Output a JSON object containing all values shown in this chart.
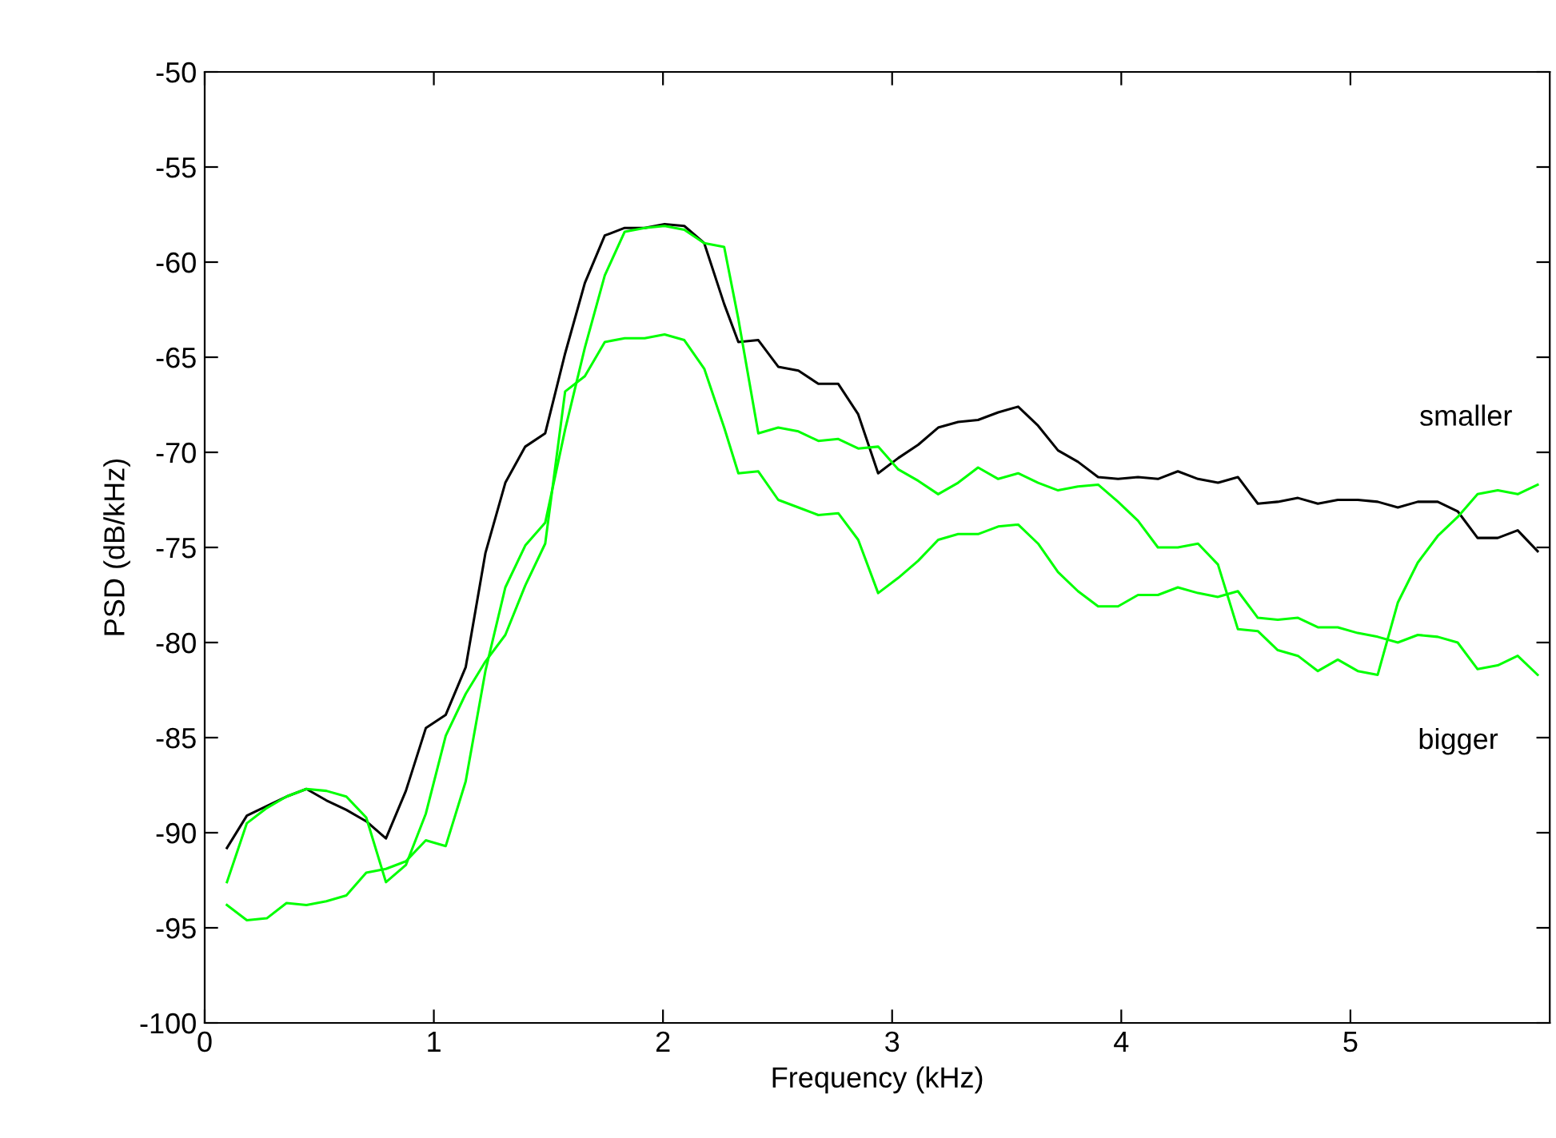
{
  "chart_data": {
    "type": "line",
    "xlabel": "Frequency (kHz)",
    "ylabel": "PSD (dB/kHz)",
    "xlim": [
      0,
      5.87
    ],
    "xticks": [
      0,
      1,
      2,
      3,
      4,
      5
    ],
    "ylim": [
      -100,
      -50
    ],
    "yticks": [
      -100,
      -95,
      -90,
      -85,
      -80,
      -75,
      -70,
      -65,
      -60,
      -55,
      -50
    ],
    "x": [
      0.097,
      0.184,
      0.271,
      0.357,
      0.444,
      0.531,
      0.618,
      0.705,
      0.791,
      0.878,
      0.965,
      1.052,
      1.139,
      1.225,
      1.312,
      1.399,
      1.486,
      1.573,
      1.659,
      1.746,
      1.833,
      1.92,
      2.007,
      2.093,
      2.18,
      2.267,
      2.329,
      2.416,
      2.503,
      2.591,
      2.678,
      2.765,
      2.852,
      2.939,
      3.027,
      3.114,
      3.201,
      3.288,
      3.375,
      3.463,
      3.55,
      3.637,
      3.724,
      3.811,
      3.899,
      3.986,
      4.073,
      4.16,
      4.247,
      4.335,
      4.422,
      4.509,
      4.596,
      4.683,
      4.771,
      4.858,
      4.945,
      5.032,
      5.119,
      5.207,
      5.294,
      5.381,
      5.468,
      5.555,
      5.643,
      5.73,
      5.817
    ],
    "series": [
      {
        "color": "#000000",
        "values": [
          -90.8,
          -89.1,
          -88.6,
          -88.1,
          -87.7,
          -88.3,
          -88.8,
          -89.4,
          -90.3,
          -87.8,
          -84.5,
          -83.8,
          -81.3,
          -75.3,
          -71.6,
          -69.7,
          -69.0,
          -64.8,
          -61.1,
          -58.6,
          -58.2,
          -58.2,
          -58.0,
          -58.1,
          -59.0,
          -62.2,
          -64.2,
          -64.1,
          -65.5,
          -65.7,
          -66.4,
          -66.4,
          -68.0,
          -71.1,
          -70.3,
          -69.6,
          -68.7,
          -68.4,
          -68.3,
          -67.9,
          -67.6,
          -68.6,
          -69.9,
          -70.5,
          -71.3,
          -71.4,
          -71.3,
          -71.4,
          -71.0,
          -71.4,
          -71.6,
          -71.3,
          -72.7,
          -72.6,
          -72.4,
          -72.7,
          -72.5,
          -72.5,
          -72.6,
          -72.9,
          -72.6,
          -72.6,
          -73.1,
          -74.5,
          -74.5,
          -74.1,
          -75.2
        ]
      },
      {
        "color": "#00ff00",
        "values": [
          -93.8,
          -94.6,
          -94.5,
          -93.7,
          -93.8,
          -93.6,
          -93.3,
          -92.1,
          -91.9,
          -91.5,
          -90.4,
          -90.7,
          -87.3,
          -81.5,
          -77.1,
          -74.9,
          -73.7,
          -68.8,
          -64.5,
          -60.7,
          -58.4,
          -58.2,
          -58.1,
          -58.3,
          -59.0,
          -59.2,
          -63.0,
          -69.0,
          -68.7,
          -68.9,
          -69.4,
          -69.3,
          -69.8,
          -69.7,
          -70.9,
          -71.5,
          -72.2,
          -71.6,
          -70.8,
          -71.4,
          -71.1,
          -71.6,
          -72.0,
          -71.8,
          -71.7,
          -72.6,
          -73.6,
          -75.0,
          -75.0,
          -74.8,
          -75.9,
          -79.3,
          -79.4,
          -80.4,
          -80.7,
          -81.5,
          -80.9,
          -81.5,
          -81.7,
          -77.9,
          -75.8,
          -74.4,
          -73.4,
          -72.2,
          -72.0,
          -72.2,
          -71.7
        ]
      },
      {
        "color": "#00ff00",
        "values": [
          -92.6,
          -89.5,
          -88.7,
          -88.1,
          -87.7,
          -87.8,
          -88.1,
          -89.2,
          -92.6,
          -91.7,
          -89.0,
          -84.9,
          -82.7,
          -81.0,
          -79.6,
          -77.0,
          -74.8,
          -66.8,
          -66.0,
          -64.2,
          -64.0,
          -64.0,
          -63.8,
          -64.1,
          -65.6,
          -68.7,
          -71.1,
          -71.0,
          -72.5,
          -72.9,
          -73.3,
          -73.2,
          -74.6,
          -77.4,
          -76.6,
          -75.7,
          -74.6,
          -74.3,
          -74.3,
          -73.9,
          -73.8,
          -74.8,
          -76.3,
          -77.3,
          -78.1,
          -78.1,
          -77.5,
          -77.5,
          -77.1,
          -77.4,
          -77.6,
          -77.3,
          -78.7,
          -78.8,
          -78.7,
          -79.2,
          -79.2,
          -79.5,
          -79.7,
          -80.0,
          -79.6,
          -79.7,
          -80.0,
          -81.4,
          -81.2,
          -80.7,
          -81.7
        ]
      }
    ],
    "annotations": [
      "smaller",
      "bigger"
    ],
    "grid": false,
    "marker": "none",
    "line_style": "solid"
  }
}
